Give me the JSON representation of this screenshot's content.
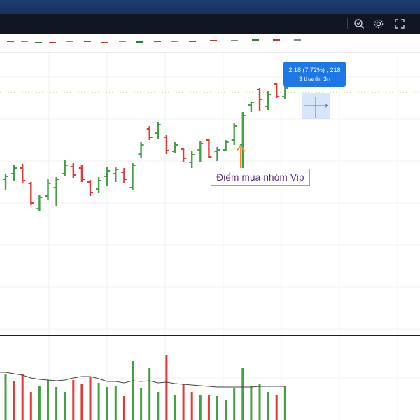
{
  "toolbar": {
    "icons": [
      "zoom-icon",
      "gear-icon",
      "fullscreen-icon"
    ]
  },
  "colors": {
    "up": "#43a047",
    "down": "#e53935",
    "toolbar_bg": "#111722",
    "header_bg": "#1d3e73",
    "accent": "#1e77e6",
    "annotation_border": "#e8942a",
    "annotation_text": "#5a2f8c"
  },
  "annotation": {
    "label": "Điểm mua nhóm Vip"
  },
  "tooltip": {
    "line1": "2.18 (7.72%) , 218",
    "line2": "3 thanh, 3n"
  },
  "chart_data": {
    "type": "ohlc",
    "ohlc_bars": [
      {
        "o": 256,
        "h": 248,
        "l": 272,
        "c": 252,
        "dir": "up"
      },
      {
        "o": 248,
        "h": 235,
        "l": 258,
        "c": 240,
        "dir": "up"
      },
      {
        "o": 240,
        "h": 234,
        "l": 262,
        "c": 258,
        "dir": "down"
      },
      {
        "o": 262,
        "h": 260,
        "l": 293,
        "c": 290,
        "dir": "down"
      },
      {
        "o": 298,
        "h": 278,
        "l": 302,
        "c": 282,
        "dir": "up"
      },
      {
        "o": 280,
        "h": 256,
        "l": 285,
        "c": 262,
        "dir": "up"
      },
      {
        "o": 268,
        "h": 253,
        "l": 294,
        "c": 256,
        "dir": "up"
      },
      {
        "o": 248,
        "h": 229,
        "l": 252,
        "c": 236,
        "dir": "up"
      },
      {
        "o": 238,
        "h": 233,
        "l": 254,
        "c": 250,
        "dir": "down"
      },
      {
        "o": 240,
        "h": 236,
        "l": 260,
        "c": 256,
        "dir": "down"
      },
      {
        "o": 260,
        "h": 257,
        "l": 280,
        "c": 275,
        "dir": "down"
      },
      {
        "o": 270,
        "h": 253,
        "l": 276,
        "c": 258,
        "dir": "up"
      },
      {
        "o": 252,
        "h": 238,
        "l": 265,
        "c": 244,
        "dir": "up"
      },
      {
        "o": 248,
        "h": 238,
        "l": 260,
        "c": 242,
        "dir": "up"
      },
      {
        "o": 246,
        "h": 240,
        "l": 262,
        "c": 256,
        "dir": "down"
      },
      {
        "o": 268,
        "h": 233,
        "l": 272,
        "c": 236,
        "dir": "up"
      },
      {
        "o": 220,
        "h": 203,
        "l": 225,
        "c": 207,
        "dir": "up"
      },
      {
        "o": 184,
        "h": 180,
        "l": 200,
        "c": 196,
        "dir": "down"
      },
      {
        "o": 190,
        "h": 174,
        "l": 198,
        "c": 178,
        "dir": "up"
      },
      {
        "o": 196,
        "h": 193,
        "l": 220,
        "c": 215,
        "dir": "down"
      },
      {
        "o": 216,
        "h": 203,
        "l": 219,
        "c": 207,
        "dir": "up"
      },
      {
        "o": 213,
        "h": 211,
        "l": 231,
        "c": 226,
        "dir": "down"
      },
      {
        "o": 232,
        "h": 215,
        "l": 240,
        "c": 221,
        "dir": "up"
      },
      {
        "o": 214,
        "h": 201,
        "l": 231,
        "c": 205,
        "dir": "up"
      },
      {
        "o": 200,
        "h": 199,
        "l": 226,
        "c": 224,
        "dir": "down"
      },
      {
        "o": 216,
        "h": 210,
        "l": 230,
        "c": 214,
        "dir": "up"
      },
      {
        "o": 214,
        "h": 200,
        "l": 215,
        "c": 203,
        "dir": "up"
      },
      {
        "o": 200,
        "h": 175,
        "l": 207,
        "c": 180,
        "dir": "up"
      },
      {
        "o": 207,
        "h": 160,
        "l": 240,
        "c": 165,
        "dir": "up"
      },
      {
        "o": 150,
        "h": 145,
        "l": 160,
        "c": 146,
        "dir": "up"
      },
      {
        "o": 128,
        "h": 126,
        "l": 158,
        "c": 142,
        "dir": "down"
      },
      {
        "o": 152,
        "h": 130,
        "l": 157,
        "c": 135,
        "dir": "up"
      },
      {
        "o": 120,
        "h": 118,
        "l": 140,
        "c": 138,
        "dir": "down"
      },
      {
        "o": 138,
        "h": 123,
        "l": 142,
        "c": 126,
        "dir": "up"
      }
    ],
    "volume": {
      "bars": [
        {
          "v": 0.66,
          "dir": "up"
        },
        {
          "v": 0.55,
          "dir": "down"
        },
        {
          "v": 0.66,
          "dir": "down"
        },
        {
          "v": 0.4,
          "dir": "down"
        },
        {
          "v": 0.49,
          "dir": "up"
        },
        {
          "v": 0.57,
          "dir": "up"
        },
        {
          "v": 0.47,
          "dir": "up"
        },
        {
          "v": 0.4,
          "dir": "up"
        },
        {
          "v": 0.57,
          "dir": "down"
        },
        {
          "v": 0.51,
          "dir": "down"
        },
        {
          "v": 0.61,
          "dir": "down"
        },
        {
          "v": 0.53,
          "dir": "up"
        },
        {
          "v": 0.47,
          "dir": "up"
        },
        {
          "v": 0.49,
          "dir": "up"
        },
        {
          "v": 0.34,
          "dir": "down"
        },
        {
          "v": 0.84,
          "dir": "up"
        },
        {
          "v": 0.45,
          "dir": "up"
        },
        {
          "v": 0.74,
          "dir": "up"
        },
        {
          "v": 0.4,
          "dir": "up"
        },
        {
          "v": 0.93,
          "dir": "down"
        },
        {
          "v": 0.36,
          "dir": "up"
        },
        {
          "v": 0.51,
          "dir": "down"
        },
        {
          "v": 0.4,
          "dir": "down"
        },
        {
          "v": 0.36,
          "dir": "up"
        },
        {
          "v": 0.36,
          "dir": "down"
        },
        {
          "v": 0.34,
          "dir": "up"
        },
        {
          "v": 0.28,
          "dir": "up"
        },
        {
          "v": 0.45,
          "dir": "up"
        },
        {
          "v": 0.74,
          "dir": "up"
        },
        {
          "v": 0.49,
          "dir": "up"
        },
        {
          "v": 0.51,
          "dir": "up"
        },
        {
          "v": 0.4,
          "dir": "up"
        },
        {
          "v": 0.36,
          "dir": "down"
        },
        {
          "v": 0.49,
          "dir": "up"
        }
      ],
      "moving_average": [
        0.68,
        0.66,
        0.64,
        0.6,
        0.58,
        0.57,
        0.56,
        0.57,
        0.6,
        0.62,
        0.62,
        0.59,
        0.55,
        0.55,
        0.53,
        0.56,
        0.55,
        0.56,
        0.53,
        0.54,
        0.52,
        0.51,
        0.5,
        0.49,
        0.48,
        0.47,
        0.47,
        0.47,
        0.47,
        0.47,
        0.48,
        0.48,
        0.48,
        0.48
      ]
    },
    "grid": true,
    "annotation_bar_index": 28,
    "dashed_level_y": 132
  }
}
